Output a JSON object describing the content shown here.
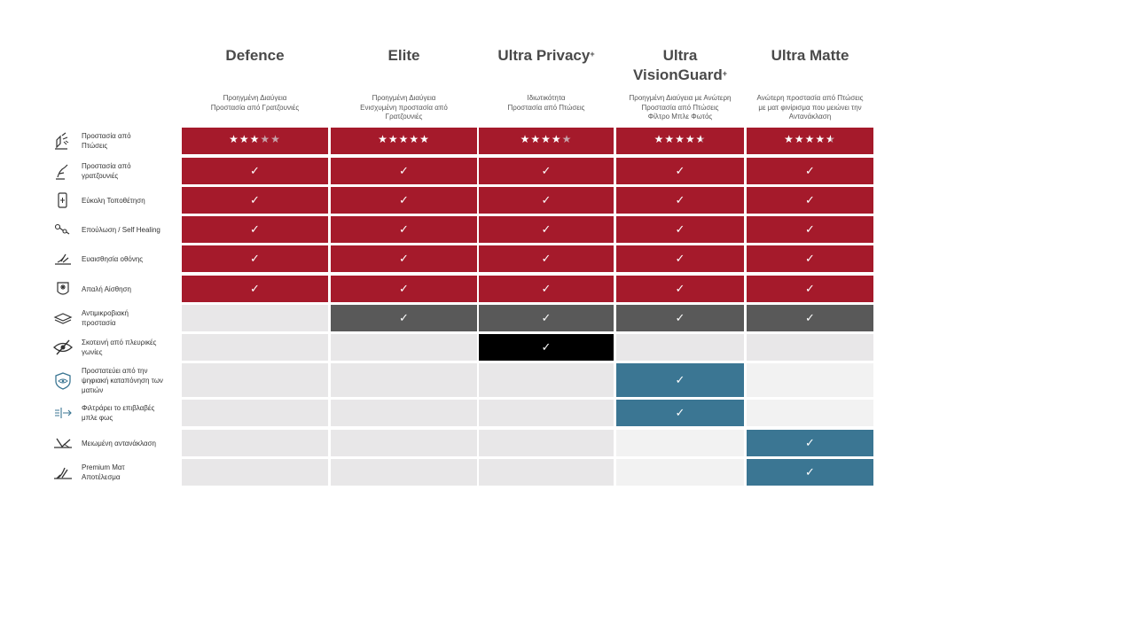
{
  "colors": {
    "red": "#a51a2b",
    "dark_gray": "#595959",
    "black": "#000000",
    "blue": "#3b7693",
    "empty": "#e8e7e8",
    "empty_light": "#f2f2f2"
  },
  "columns": [
    {
      "name": "Defence",
      "sup": "",
      "sub": "Προηγμένη Διαύγεια\nΠροστασία από Γρατζουνιές"
    },
    {
      "name": "Elite",
      "sup": "",
      "sub": "Προηγμένη Διαύγεια\nΕνισχυμένη προστασία από\nΓρατζουνιές"
    },
    {
      "name": "Ultra Privacy",
      "sup": "+",
      "sub": "Ιδιωτικότητα\nΠροστασία από Πτώσεις"
    },
    {
      "name": "Ultra\nVisionGuard",
      "sup": "+",
      "sub": "Προηγμένη Διαύγεια με Ανώτερη\nΠροστασία από Πτώσεις\nΦίλτρο Μπλε Φωτός"
    },
    {
      "name": "Ultra Matte",
      "sup": "",
      "sub": "Ανώτερη προστασία από Πτώσεις\nμε ματ φινίρισμα που μειώνει την\nΑντανάκλαση"
    }
  ],
  "rows": [
    {
      "label": "Προστασία από\nΠτώσεις",
      "icon": "drop-icon"
    },
    {
      "label": "Προστασία από\nγρατζουνιές",
      "icon": "scratch-icon"
    },
    {
      "label": "Εύκολη Τοποθέτηση",
      "icon": "phone-install-icon"
    },
    {
      "label": "Επούλωση / Self Healing",
      "icon": "self-healing-icon"
    },
    {
      "label": "Ευαισθησία οθόνης",
      "icon": "touch-sensitivity-icon"
    },
    {
      "label": "Απαλή Αίσθηση",
      "icon": "smooth-touch-icon"
    },
    {
      "label": "Αντιμικροβιακή\nπροστασία",
      "icon": "antimicrobial-icon"
    },
    {
      "label": "Σκοτεινή από πλευρικές\nγωνίες",
      "icon": "privacy-eye-icon"
    },
    {
      "label": "Προστατεύει από την\nψηφιακή καταπόνηση των\nματιών",
      "icon": "eye-shield-icon"
    },
    {
      "label": "Φιλτράρει το επιβλαβές\nμπλε φως",
      "icon": "blue-light-filter-icon"
    },
    {
      "label": "Μειωμένη αντανάκλαση",
      "icon": "reduced-glare-icon"
    },
    {
      "label": "Premium Ματ\nΑποτέλεσμα",
      "icon": "matte-finish-icon"
    }
  ],
  "ratings": [
    3,
    5,
    4,
    4.5,
    4.5
  ],
  "grid": [
    [
      "red",
      "red",
      "red",
      "red",
      "red"
    ],
    [
      "red",
      "red",
      "red",
      "red",
      "red"
    ],
    [
      "red",
      "red",
      "red",
      "red",
      "red"
    ],
    [
      "red",
      "red",
      "red",
      "red",
      "red"
    ],
    [
      "red",
      "red",
      "red",
      "red",
      "red"
    ],
    [
      "red",
      "red",
      "red",
      "red",
      "red"
    ],
    [
      "empty",
      "dark_gray",
      "dark_gray",
      "dark_gray",
      "dark_gray"
    ],
    [
      "empty",
      "empty",
      "black",
      "empty",
      "empty"
    ],
    [
      "empty",
      "empty",
      "empty",
      "blue",
      "empty_light"
    ],
    [
      "empty",
      "empty",
      "empty",
      "blue",
      "empty_light"
    ],
    [
      "empty",
      "empty",
      "empty",
      "empty_light",
      "blue"
    ],
    [
      "empty",
      "empty",
      "empty",
      "empty_light",
      "blue"
    ]
  ],
  "check_glyph": "✓"
}
